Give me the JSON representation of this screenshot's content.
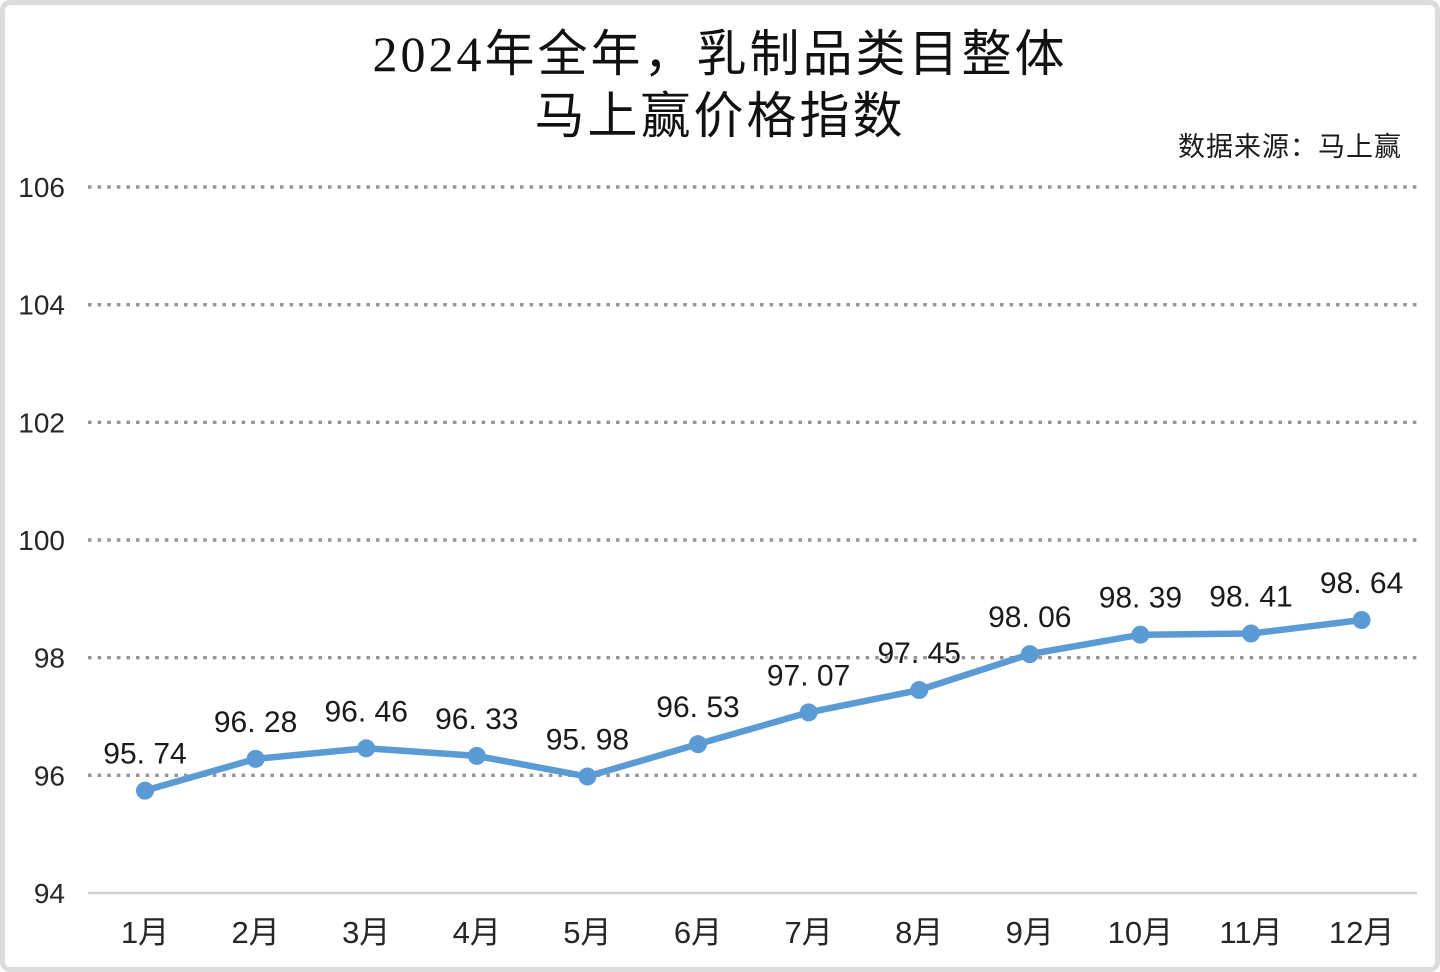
{
  "page": {
    "title_line1": "2024年全年，乳制品类目整体",
    "title_line2": "马上赢价格指数",
    "source_note": "数据来源：马上赢"
  },
  "chart_data": {
    "type": "line",
    "title": "2024年全年，乳制品类目整体 马上赢价格指数",
    "source": "数据来源：马上赢",
    "categories": [
      "1月",
      "2月",
      "3月",
      "4月",
      "5月",
      "6月",
      "7月",
      "8月",
      "9月",
      "10月",
      "11月",
      "12月"
    ],
    "series": [
      {
        "name": "马上赢价格指数",
        "values": [
          95.74,
          96.28,
          96.46,
          96.33,
          95.98,
          96.53,
          97.07,
          97.45,
          98.06,
          98.39,
          98.41,
          98.64
        ]
      }
    ],
    "point_labels": [
      "95. 74",
      "96. 28",
      "96. 46",
      "96. 33",
      "95. 98",
      "96. 53",
      "97. 07",
      "97. 45",
      "98. 06",
      "98. 39",
      "98. 41",
      "98. 64"
    ],
    "xlabel": "",
    "ylabel": "",
    "ylim": [
      94,
      106
    ],
    "y_ticks": [
      94,
      96,
      98,
      100,
      102,
      104,
      106
    ],
    "grid": "horizontal-dotted",
    "legend_position": "none",
    "marker": "circle",
    "colors": {
      "line": "#5B9BD5",
      "marker": "#5B9BD5",
      "gridline": "#969696",
      "axis_line": "#d2d2d2",
      "tick_label": "#262626",
      "data_label": "#1a1a1a"
    }
  }
}
